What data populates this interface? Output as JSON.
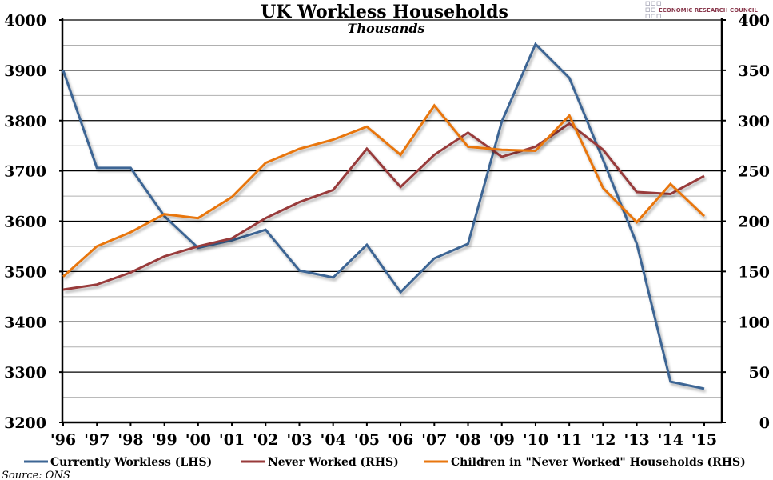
{
  "chart_data": {
    "type": "line",
    "title": "UK Workless Households",
    "subtitle": "Thousands",
    "source": "Source: ONS",
    "logo_text": "ECONOMIC RESEARCH COUNCIL",
    "categories": [
      "'96",
      "'97",
      "'98",
      "'99",
      "'00",
      "'01",
      "'02",
      "'03",
      "'04",
      "'05",
      "'06",
      "'07",
      "'08",
      "'09",
      "'10",
      "'11",
      "'12",
      "'13",
      "'14",
      "'15"
    ],
    "y_left": {
      "min": 3200,
      "max": 4000,
      "step": 100,
      "ticks": [
        "3200",
        "3300",
        "3400",
        "3500",
        "3600",
        "3700",
        "3800",
        "3900",
        "4000"
      ]
    },
    "y_right": {
      "min": 0,
      "max": 400,
      "step": 50,
      "ticks": [
        "0",
        "50",
        "100",
        "150",
        "200",
        "250",
        "300",
        "350",
        "400"
      ]
    },
    "grid": true,
    "legend_position": "bottom",
    "series": [
      {
        "name": "Currently Workless (LHS)",
        "axis": "left",
        "color": "#3c6594",
        "values": [
          3900,
          3706,
          3706,
          3610,
          3547,
          3562,
          3583,
          3502,
          3488,
          3553,
          3459,
          3526,
          3555,
          3798,
          3952,
          3885,
          3722,
          3555,
          3281,
          3267
        ]
      },
      {
        "name": "Never Worked (RHS)",
        "axis": "right",
        "color": "#983a3a",
        "values": [
          132,
          137,
          149,
          165,
          175,
          183,
          203,
          219,
          231,
          272,
          234,
          266,
          288,
          264,
          274,
          297,
          271,
          229,
          227,
          245
        ]
      },
      {
        "name": "Children in \"Never Worked\" Households (RHS)",
        "axis": "right",
        "color": "#e8760e",
        "values": [
          145,
          175,
          189,
          207,
          203,
          224,
          258,
          272,
          281,
          294,
          266,
          315,
          274,
          271,
          270,
          305,
          233,
          199,
          237,
          205
        ]
      }
    ]
  }
}
